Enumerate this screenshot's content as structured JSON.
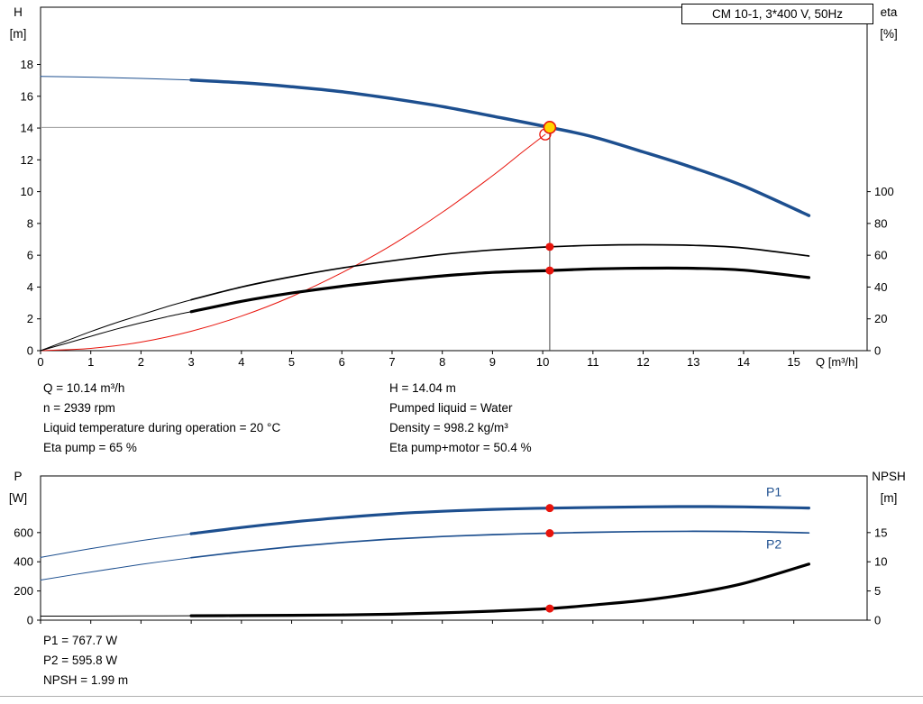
{
  "colors": {
    "curve_blue": "#1d4f8f",
    "curve_black": "#000000",
    "curve_red": "#e8140c",
    "marker_yellow": "#ffd500",
    "crosshair_horizontal": "#999999",
    "crosshair_vertical": "#444444",
    "axis": "#000000"
  },
  "title_box": "CM 10-1, 3*400 V, 50Hz",
  "info_top": {
    "left": [
      "Q = 10.14 m³/h",
      "n = 2939 rpm",
      "Liquid temperature during operation = 20 °C",
      "Eta pump = 65 %"
    ],
    "right": [
      "H = 14.04 m",
      "Pumped liquid = Water",
      "Density = 998.2 kg/m³",
      "Eta pump+motor = 50.4 %"
    ]
  },
  "info_bottom": [
    "P1 = 767.7 W",
    "P2 = 595.8 W",
    "NPSH = 1.99 m"
  ],
  "chart_data": [
    {
      "id": "qh",
      "type": "line",
      "title": "CM 10-1, 3*400 V, 50Hz",
      "x": {
        "label": "Q [m³/h]",
        "min": 0,
        "max": 16.46,
        "ticks": [
          0,
          1,
          2,
          3,
          4,
          5,
          6,
          7,
          8,
          9,
          10,
          11,
          12,
          13,
          14,
          15
        ],
        "show_tick_labels": true
      },
      "left": {
        "title": [
          "H",
          "[m]"
        ],
        "min": 0,
        "max": 21.6,
        "ticks": [
          0,
          2,
          4,
          6,
          8,
          10,
          12,
          14,
          16,
          18
        ]
      },
      "right": {
        "title": [
          "eta",
          "[%]"
        ],
        "min": 0,
        "max": 216,
        "ticks": [
          0,
          20,
          40,
          60,
          80,
          100
        ]
      },
      "crosshair": {
        "q": 10.14,
        "value": 14.04
      },
      "series": [
        {
          "name": "head-extension",
          "axis": "left",
          "color": "blue",
          "width": 1,
          "points": [
            [
              0,
              17.25
            ],
            [
              1,
              17.2
            ],
            [
              2,
              17.12
            ],
            [
              3,
              17.02
            ]
          ]
        },
        {
          "name": "head",
          "axis": "left",
          "color": "blue",
          "width": 3.5,
          "points": [
            [
              3,
              17.02
            ],
            [
              4,
              16.85
            ],
            [
              5,
              16.6
            ],
            [
              6,
              16.28
            ],
            [
              7,
              15.85
            ],
            [
              8,
              15.35
            ],
            [
              9,
              14.75
            ],
            [
              10.14,
              14.04
            ],
            [
              11,
              13.45
            ],
            [
              12,
              12.5
            ],
            [
              13,
              11.5
            ],
            [
              14,
              10.35
            ],
            [
              15.3,
              8.5
            ]
          ]
        },
        {
          "name": "system-curve",
          "axis": "left",
          "color": "red",
          "width": 1,
          "points": [
            [
              0,
              0
            ],
            [
              1,
              0.14
            ],
            [
              2,
              0.54
            ],
            [
              3,
              1.22
            ],
            [
              4,
              2.17
            ],
            [
              5,
              3.4
            ],
            [
              6,
              4.9
            ],
            [
              7,
              6.65
            ],
            [
              8,
              8.7
            ],
            [
              9,
              11.0
            ],
            [
              9.6,
              12.5
            ],
            [
              10.05,
              13.6
            ]
          ]
        },
        {
          "name": "eta-pump-extension",
          "axis": "right",
          "color": "black",
          "width": 1,
          "points": [
            [
              0,
              0
            ],
            [
              0.5,
              6
            ],
            [
              1,
              12
            ],
            [
              1.5,
              17.5
            ],
            [
              2,
              22.5
            ],
            [
              2.5,
              27.5
            ],
            [
              3,
              32
            ]
          ]
        },
        {
          "name": "eta-pump",
          "axis": "right",
          "color": "black",
          "width": 1.7,
          "points": [
            [
              3,
              32
            ],
            [
              4,
              40
            ],
            [
              5,
              46.5
            ],
            [
              6,
              52
            ],
            [
              7,
              56.5
            ],
            [
              8,
              60.5
            ],
            [
              9,
              63.3
            ],
            [
              10.14,
              65.3
            ],
            [
              11,
              66.2
            ],
            [
              12,
              66.6
            ],
            [
              13,
              66.2
            ],
            [
              14,
              64.6
            ],
            [
              15.3,
              59.5
            ]
          ]
        },
        {
          "name": "eta-pump-motor-extension",
          "axis": "right",
          "color": "black",
          "width": 1,
          "points": [
            [
              0,
              0
            ],
            [
              0.5,
              4.5
            ],
            [
              1,
              9
            ],
            [
              1.5,
              13.5
            ],
            [
              2,
              17.5
            ],
            [
              2.5,
              21.2
            ],
            [
              3,
              24.5
            ]
          ]
        },
        {
          "name": "eta-pump-motor",
          "axis": "right",
          "color": "black",
          "width": 3.2,
          "points": [
            [
              3,
              24.5
            ],
            [
              4,
              31
            ],
            [
              5,
              36.2
            ],
            [
              6,
              40.5
            ],
            [
              7,
              44
            ],
            [
              8,
              47
            ],
            [
              9,
              49.2
            ],
            [
              10.14,
              50.4
            ],
            [
              11,
              51.4
            ],
            [
              12,
              51.9
            ],
            [
              13,
              51.8
            ],
            [
              14,
              50.6
            ],
            [
              15.3,
              46
            ]
          ]
        }
      ],
      "markers": [
        {
          "name": "requested-duty-point",
          "q": 10.05,
          "value": 13.6,
          "axis": "left",
          "r": 6,
          "fill": "none",
          "stroke": "red",
          "stroke_width": 1.3
        },
        {
          "name": "duty-point",
          "q": 10.14,
          "value": 14.04,
          "axis": "left",
          "r": 6.5,
          "fill": "yellow",
          "stroke": "red",
          "stroke_width": 1.6
        },
        {
          "name": "eta-pump-point",
          "q": 10.14,
          "value": 65.3,
          "axis": "right",
          "r": 4.5,
          "fill": "red"
        },
        {
          "name": "eta-pump-motor-point",
          "q": 10.14,
          "value": 50.4,
          "axis": "right",
          "r": 4.5,
          "fill": "red"
        }
      ],
      "labels": []
    },
    {
      "id": "power-npsh",
      "type": "line",
      "x": {
        "label": "",
        "min": 0,
        "max": 16.46,
        "ticks": [
          0,
          1,
          2,
          3,
          4,
          5,
          6,
          7,
          8,
          9,
          10,
          11,
          12,
          13,
          14,
          15
        ],
        "show_tick_labels": false
      },
      "left": {
        "title": [
          "P",
          "[W]"
        ],
        "min": 0,
        "max": 988,
        "ticks": [
          0,
          200,
          400,
          600
        ]
      },
      "right": {
        "title": [
          "NPSH",
          "[m]"
        ],
        "min": 0,
        "max": 24.7,
        "ticks": [
          0,
          5,
          10,
          15
        ]
      },
      "series": [
        {
          "name": "p1-extension",
          "axis": "left",
          "color": "blue",
          "width": 1,
          "points": [
            [
              0,
              430
            ],
            [
              1,
              490
            ],
            [
              2,
              545
            ],
            [
              3,
              592
            ]
          ]
        },
        {
          "name": "p1",
          "axis": "left",
          "color": "blue",
          "width": 3.2,
          "points": [
            [
              3,
              592
            ],
            [
              4,
              635
            ],
            [
              5,
              672
            ],
            [
              6,
              703
            ],
            [
              7,
              728
            ],
            [
              8,
              746
            ],
            [
              9,
              759
            ],
            [
              10.14,
              767.7
            ],
            [
              12,
              776
            ],
            [
              13,
              778
            ],
            [
              14,
              776
            ],
            [
              15.3,
              768
            ]
          ]
        },
        {
          "name": "p2-extension",
          "axis": "left",
          "color": "blue",
          "width": 1,
          "points": [
            [
              0,
              275
            ],
            [
              1,
              330
            ],
            [
              2,
              382
            ],
            [
              3,
              428
            ]
          ]
        },
        {
          "name": "p2",
          "axis": "left",
          "color": "blue",
          "width": 1.7,
          "points": [
            [
              3,
              428
            ],
            [
              4,
              468
            ],
            [
              5,
              503
            ],
            [
              6,
              532
            ],
            [
              7,
              556
            ],
            [
              8,
              573
            ],
            [
              9,
              586
            ],
            [
              10.14,
              595.8
            ],
            [
              11,
              602
            ],
            [
              12,
              607
            ],
            [
              13,
              609
            ],
            [
              14,
              607
            ],
            [
              15.3,
              598
            ]
          ]
        },
        {
          "name": "npsh-extension",
          "axis": "right",
          "color": "black",
          "width": 1,
          "points": [
            [
              0,
              0.7
            ],
            [
              1,
              0.7
            ],
            [
              2,
              0.72
            ],
            [
              3,
              0.75
            ]
          ]
        },
        {
          "name": "npsh",
          "axis": "right",
          "color": "black",
          "width": 3.2,
          "points": [
            [
              3,
              0.75
            ],
            [
              4,
              0.78
            ],
            [
              5,
              0.83
            ],
            [
              6,
              0.9
            ],
            [
              7,
              1.02
            ],
            [
              8,
              1.25
            ],
            [
              9,
              1.55
            ],
            [
              10.14,
              1.99
            ],
            [
              11,
              2.6
            ],
            [
              12,
              3.4
            ],
            [
              13,
              4.6
            ],
            [
              14,
              6.3
            ],
            [
              15.3,
              9.6
            ]
          ]
        }
      ],
      "markers": [
        {
          "name": "p1-point",
          "q": 10.14,
          "value": 767.7,
          "axis": "left",
          "r": 4.5,
          "fill": "red"
        },
        {
          "name": "p2-point",
          "q": 10.14,
          "value": 595.8,
          "axis": "left",
          "r": 4.5,
          "fill": "red"
        },
        {
          "name": "npsh-point",
          "q": 10.14,
          "value": 1.99,
          "axis": "right",
          "r": 4.5,
          "fill": "red"
        }
      ],
      "labels": [
        {
          "text": "P1",
          "q": 14.45,
          "value": 848,
          "axis": "left",
          "color": "blue"
        },
        {
          "text": "P2",
          "q": 14.45,
          "value": 490,
          "axis": "left",
          "color": "blue"
        }
      ]
    }
  ]
}
